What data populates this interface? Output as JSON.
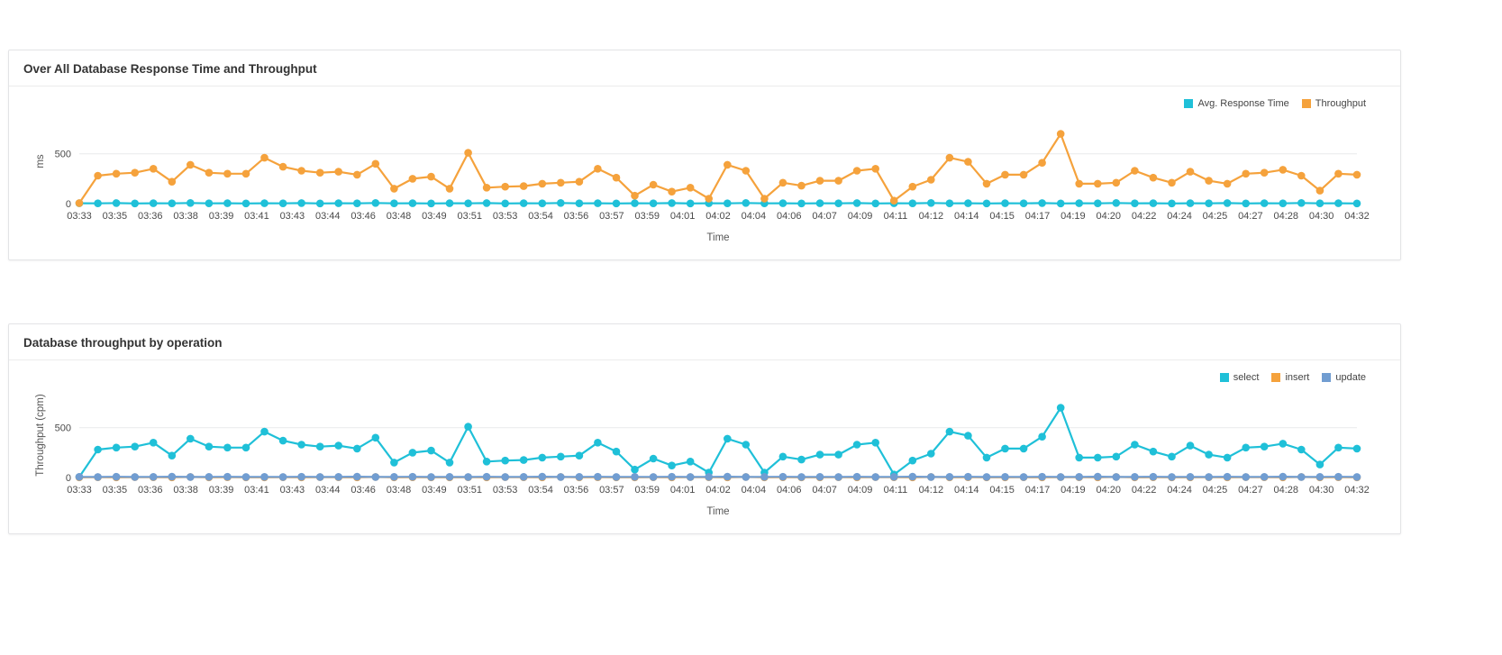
{
  "page": {
    "background": "#ffffff"
  },
  "panels": [
    {
      "title": "Over All Database Response Time and Throughput"
    },
    {
      "title": "Database throughput by operation"
    }
  ],
  "colors": {
    "cyan": "#1fc0d8",
    "orange": "#f5a23c",
    "steel_blue": "#719dd1",
    "axis_line": "#c9ced4",
    "grid_line": "#e9eaec"
  },
  "chart_data": [
    {
      "type": "line",
      "title": "Over All Database Response Time and Throughput",
      "xlabel": "Time",
      "ylabel": "ms",
      "ylim": [
        0,
        850
      ],
      "yticks": [
        0,
        500
      ],
      "grid": "horizontal",
      "legend_position": "top-right",
      "x_tick_labels": [
        "03:33",
        "03:35",
        "03:36",
        "03:38",
        "03:39",
        "03:41",
        "03:43",
        "03:44",
        "03:46",
        "03:48",
        "03:49",
        "03:51",
        "03:53",
        "03:54",
        "03:56",
        "03:57",
        "03:59",
        "04:01",
        "04:02",
        "04:04",
        "04:06",
        "04:07",
        "04:09",
        "04:11",
        "04:12",
        "04:14",
        "04:15",
        "04:17",
        "04:19",
        "04:20",
        "04:22",
        "04:24",
        "04:25",
        "04:27",
        "04:28",
        "04:30",
        "04:32"
      ],
      "series": [
        {
          "name": "Avg. Response Time",
          "color": "#1fc0d8",
          "values": [
            4,
            3,
            5,
            2,
            4,
            3,
            6,
            3,
            4,
            2,
            4,
            3,
            5,
            2,
            4,
            3,
            6,
            3,
            4,
            2,
            4,
            3,
            5,
            2,
            4,
            3,
            6,
            3,
            4,
            2,
            4,
            3,
            5,
            2,
            4,
            3,
            6,
            3,
            4,
            2,
            4,
            3,
            5,
            2,
            4,
            3,
            6,
            3,
            4,
            2,
            4,
            3,
            5,
            2,
            4,
            3,
            6,
            3,
            4,
            2,
            4,
            3,
            5,
            2,
            4,
            3,
            6,
            3,
            4,
            2
          ]
        },
        {
          "name": "Throughput",
          "color": "#f5a23c",
          "values": [
            5,
            280,
            300,
            310,
            350,
            220,
            390,
            310,
            300,
            300,
            460,
            370,
            330,
            310,
            320,
            290,
            400,
            150,
            250,
            270,
            150,
            510,
            160,
            170,
            175,
            200,
            210,
            220,
            350,
            260,
            80,
            190,
            120,
            160,
            50,
            390,
            330,
            50,
            210,
            180,
            230,
            230,
            330,
            350,
            30,
            170,
            240,
            460,
            420,
            200,
            290,
            290,
            410,
            700,
            200,
            200,
            210,
            330,
            260,
            210,
            320,
            230,
            200,
            300,
            310,
            340,
            280,
            130,
            300,
            290
          ]
        }
      ]
    },
    {
      "type": "line",
      "title": "Database throughput by operation",
      "xlabel": "Time",
      "ylabel": "Throughput (cpm)",
      "ylim": [
        0,
        850
      ],
      "yticks": [
        0,
        500
      ],
      "grid": "horizontal",
      "legend_position": "top-right",
      "x_tick_labels": [
        "03:33",
        "03:35",
        "03:36",
        "03:38",
        "03:39",
        "03:41",
        "03:43",
        "03:44",
        "03:46",
        "03:48",
        "03:49",
        "03:51",
        "03:53",
        "03:54",
        "03:56",
        "03:57",
        "03:59",
        "04:01",
        "04:02",
        "04:04",
        "04:06",
        "04:07",
        "04:09",
        "04:11",
        "04:12",
        "04:14",
        "04:15",
        "04:17",
        "04:19",
        "04:20",
        "04:22",
        "04:24",
        "04:25",
        "04:27",
        "04:28",
        "04:30",
        "04:32"
      ],
      "series": [
        {
          "name": "select",
          "color": "#1fc0d8",
          "values": [
            5,
            280,
            300,
            310,
            350,
            220,
            390,
            310,
            300,
            300,
            460,
            370,
            330,
            310,
            320,
            290,
            400,
            150,
            250,
            270,
            150,
            510,
            160,
            170,
            175,
            200,
            210,
            220,
            350,
            260,
            80,
            190,
            120,
            160,
            50,
            390,
            330,
            50,
            210,
            180,
            230,
            230,
            330,
            350,
            30,
            170,
            240,
            460,
            420,
            200,
            290,
            290,
            410,
            700,
            200,
            200,
            210,
            330,
            260,
            210,
            320,
            230,
            200,
            300,
            310,
            340,
            280,
            130,
            300,
            290
          ]
        },
        {
          "name": "insert",
          "color": "#f5a23c",
          "values": [
            2,
            3,
            2,
            4,
            3,
            2,
            5,
            2,
            3,
            2,
            2,
            3,
            2,
            4,
            3,
            2,
            5,
            2,
            3,
            2,
            2,
            3,
            2,
            4,
            3,
            2,
            5,
            2,
            3,
            2,
            2,
            3,
            2,
            4,
            3,
            2,
            5,
            2,
            3,
            2,
            2,
            3,
            2,
            4,
            3,
            2,
            5,
            2,
            3,
            2,
            2,
            3,
            2,
            4,
            3,
            2,
            5,
            2,
            3,
            2,
            2,
            3,
            2,
            4,
            3,
            2,
            5,
            2,
            3,
            2
          ]
        },
        {
          "name": "update",
          "color": "#719dd1",
          "values": [
            6,
            5,
            7,
            5,
            6,
            8,
            5,
            6,
            7,
            5,
            6,
            5,
            7,
            5,
            6,
            8,
            5,
            6,
            7,
            5,
            6,
            5,
            7,
            5,
            6,
            8,
            5,
            6,
            7,
            5,
            6,
            5,
            7,
            5,
            6,
            8,
            5,
            6,
            7,
            5,
            6,
            5,
            7,
            5,
            6,
            8,
            5,
            6,
            7,
            5,
            6,
            5,
            7,
            5,
            6,
            8,
            5,
            6,
            7,
            5,
            6,
            5,
            7,
            5,
            6,
            8,
            5,
            6,
            7,
            5
          ]
        }
      ]
    }
  ]
}
